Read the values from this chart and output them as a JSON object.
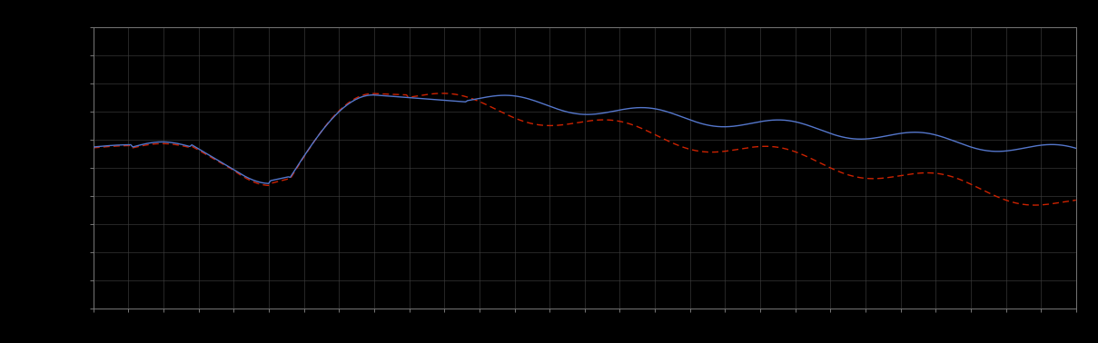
{
  "background_color": "#000000",
  "plot_bg_color": "#000000",
  "grid_color": "#404040",
  "axis_color": "#777777",
  "line_blue_color": "#5577cc",
  "line_red_color": "#cc2200",
  "figsize": [
    12.09,
    3.78
  ],
  "dpi": 100,
  "n_points": 500,
  "grid_nx": 28,
  "grid_ny": 10
}
